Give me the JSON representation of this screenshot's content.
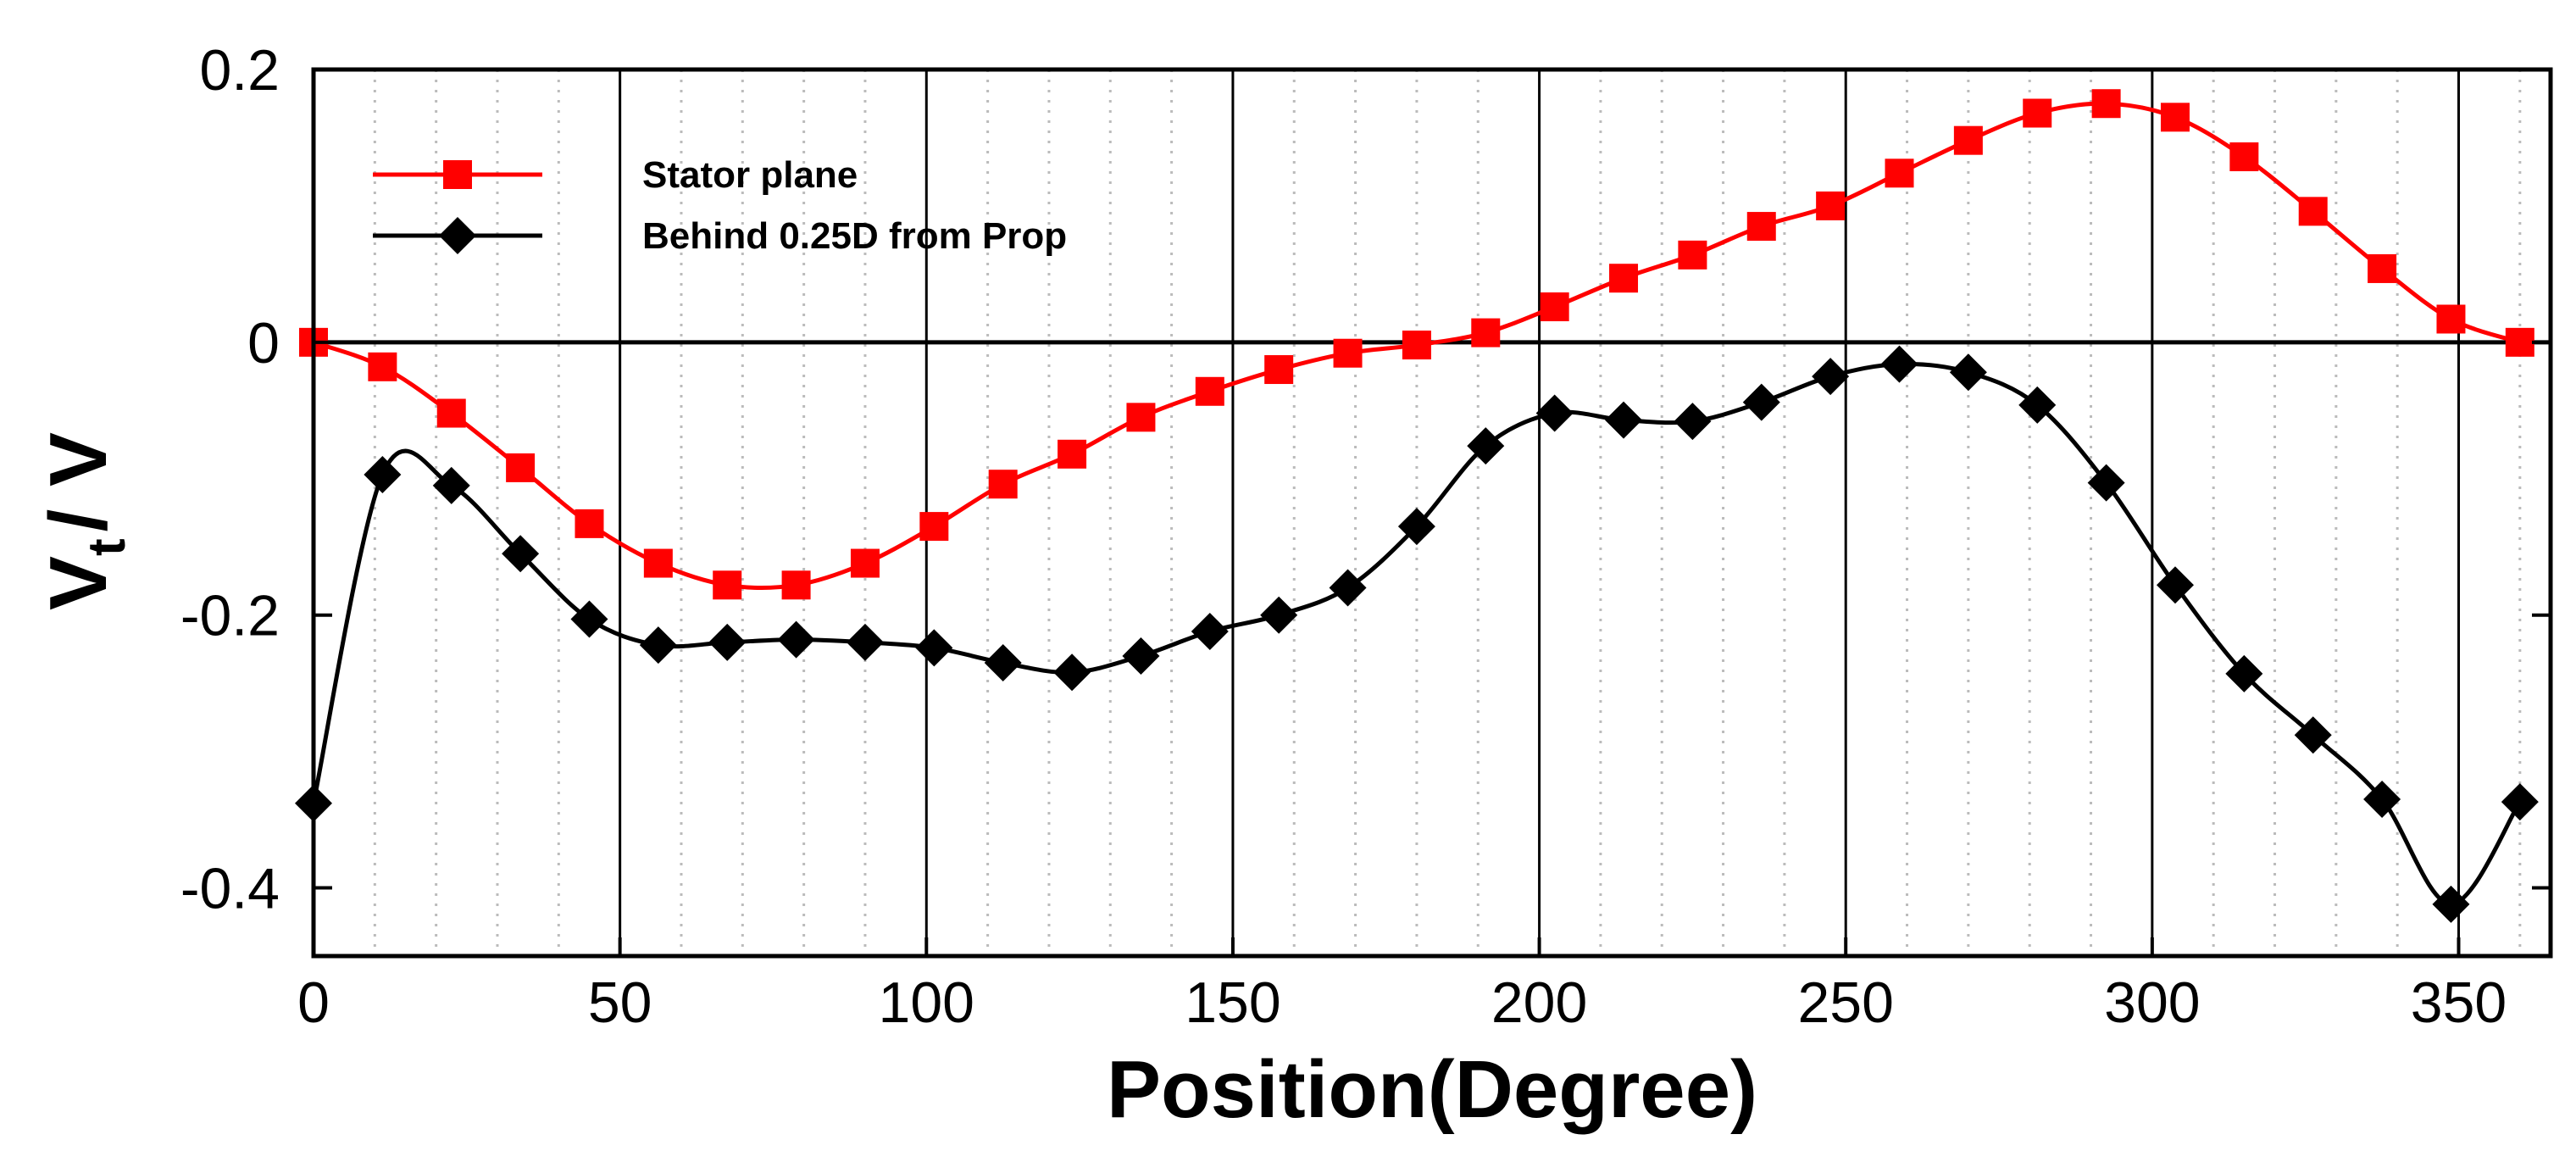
{
  "chart_data": {
    "type": "line",
    "xlabel": "Position(Degree)",
    "ylabel_main": "V",
    "ylabel_sub": "t",
    "ylabel_tail": "/ V",
    "xlim": [
      0,
      365
    ],
    "ylim": [
      -0.45,
      0.2
    ],
    "x_ticks": [
      0,
      50,
      100,
      150,
      200,
      250,
      300,
      350
    ],
    "x_tick_labels": [
      "0",
      "50",
      "100",
      "150",
      "200",
      "250",
      "300",
      "350"
    ],
    "y_ticks": [
      0.2,
      0,
      -0.2,
      -0.4
    ],
    "y_tick_labels": [
      "0.2",
      "0",
      "-0.2",
      "-0.4"
    ],
    "grid": true,
    "legend_position": "top-left",
    "series": [
      {
        "name": "Stator plane",
        "color": "#ff0000",
        "marker": "square",
        "x": [
          0,
          11.25,
          22.5,
          33.75,
          45,
          56.25,
          67.5,
          78.75,
          90,
          101.25,
          112.5,
          123.75,
          135,
          146.25,
          157.5,
          168.75,
          180,
          191.25,
          202.5,
          213.75,
          225,
          236.25,
          247.5,
          258.75,
          270,
          281.25,
          292.5,
          303.75,
          315,
          326.25,
          337.5,
          348.75,
          360
        ],
        "y": [
          0.0,
          -0.018,
          -0.052,
          -0.092,
          -0.133,
          -0.162,
          -0.178,
          -0.178,
          -0.162,
          -0.135,
          -0.104,
          -0.082,
          -0.055,
          -0.036,
          -0.02,
          -0.008,
          -0.002,
          0.007,
          0.026,
          0.047,
          0.064,
          0.085,
          0.1,
          0.124,
          0.148,
          0.168,
          0.175,
          0.165,
          0.136,
          0.096,
          0.054,
          0.017,
          0.0
        ]
      },
      {
        "name": "Behind 0.25D from Prop",
        "color": "#000000",
        "marker": "diamond",
        "x": [
          0,
          11.25,
          22.5,
          33.75,
          45,
          56.25,
          67.5,
          78.75,
          90,
          101.25,
          112.5,
          123.75,
          135,
          146.25,
          157.5,
          168.75,
          180,
          191.25,
          202.5,
          213.75,
          225,
          236.25,
          247.5,
          258.75,
          270,
          281.25,
          292.5,
          303.75,
          315,
          326.25,
          337.5,
          348.75,
          360
        ],
        "y": [
          -0.338,
          -0.097,
          -0.105,
          -0.155,
          -0.203,
          -0.222,
          -0.22,
          -0.218,
          -0.22,
          -0.224,
          -0.235,
          -0.242,
          -0.23,
          -0.212,
          -0.2,
          -0.18,
          -0.135,
          -0.076,
          -0.052,
          -0.057,
          -0.058,
          -0.044,
          -0.025,
          -0.016,
          -0.022,
          -0.046,
          -0.103,
          -0.178,
          -0.243,
          -0.288,
          -0.335,
          -0.412,
          -0.337
        ]
      }
    ]
  }
}
